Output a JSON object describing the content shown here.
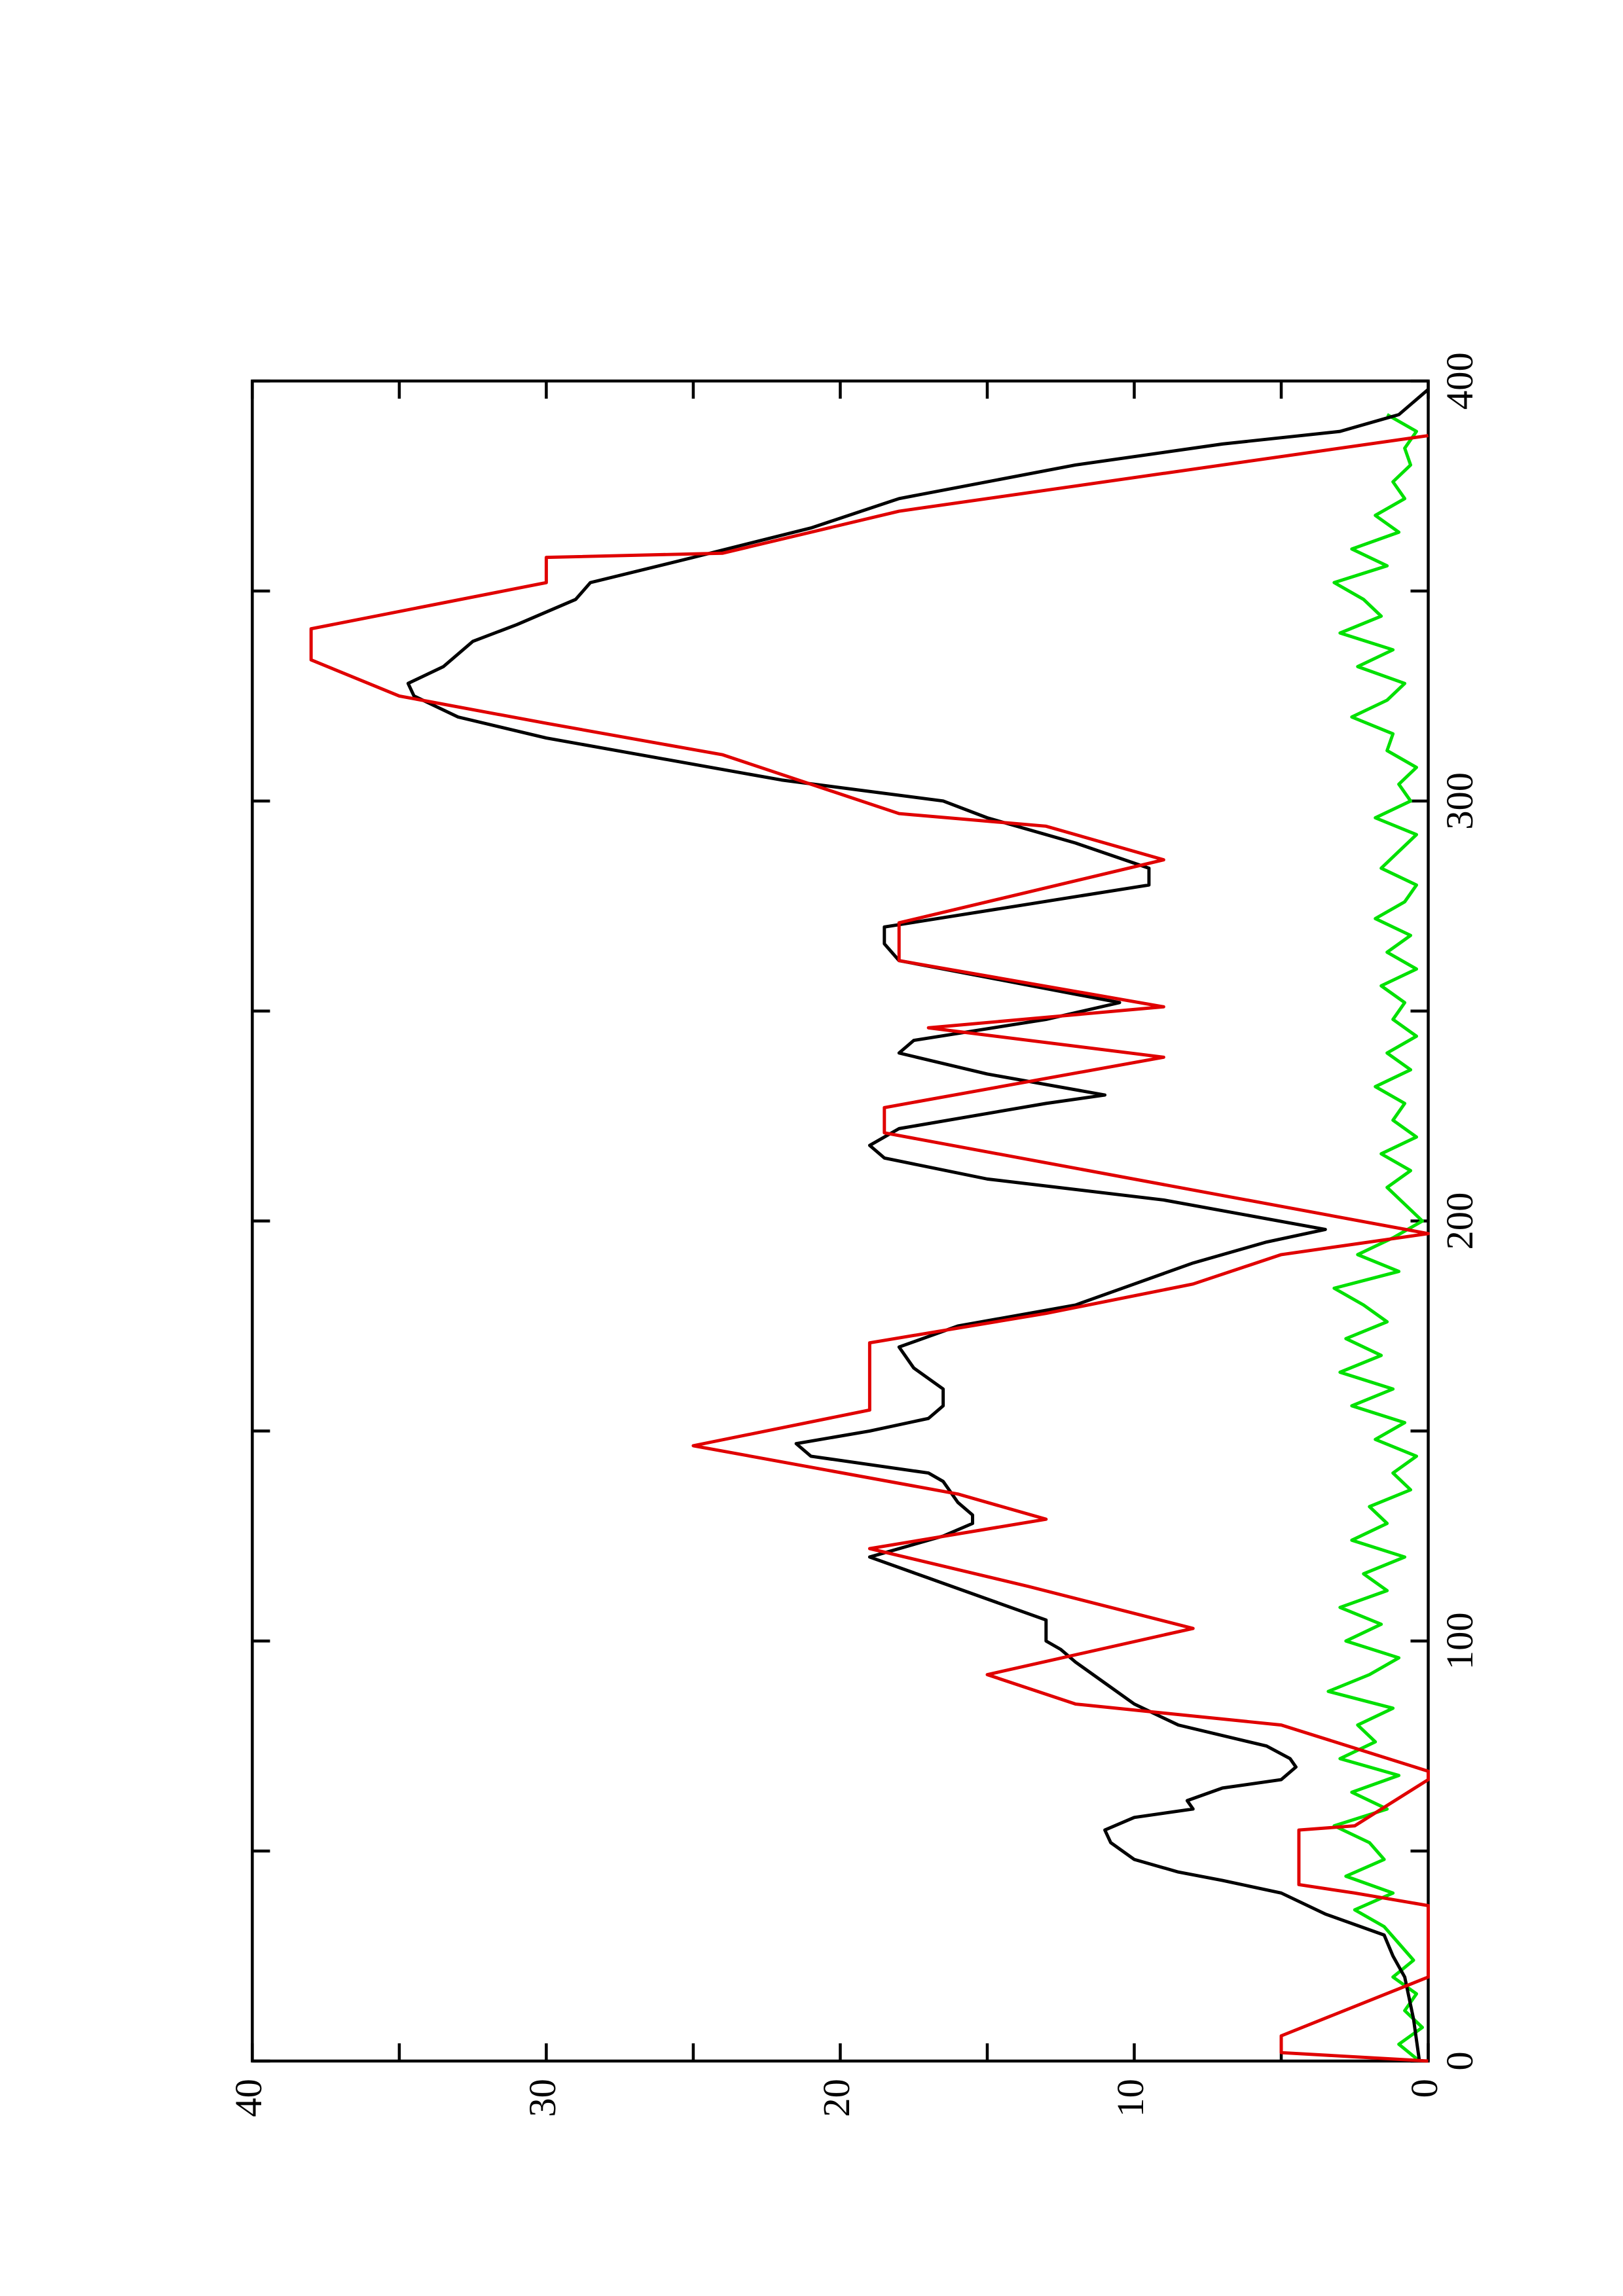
{
  "chart_data": {
    "type": "line",
    "xlim": [
      0,
      400
    ],
    "ylim": [
      0,
      40
    ],
    "xticks": [
      0,
      100,
      200,
      300,
      400
    ],
    "xticks_minor": [
      50,
      150,
      250,
      350
    ],
    "yticks": [
      0,
      10,
      20,
      30,
      40
    ],
    "yticks_minor": [
      5,
      15,
      25,
      35
    ],
    "series": [
      {
        "color": "#00e000",
        "x": [
          0,
          4,
          8,
          12,
          16,
          20,
          24,
          28,
          32,
          36,
          40,
          44,
          48,
          52,
          56,
          60,
          64,
          68,
          72,
          76,
          80,
          84,
          88,
          92,
          96,
          100,
          104,
          108,
          112,
          116,
          120,
          124,
          128,
          132,
          136,
          140,
          144,
          148,
          152,
          156,
          160,
          164,
          168,
          172,
          176,
          180,
          184,
          188,
          192,
          196,
          200,
          204,
          208,
          212,
          216,
          220,
          224,
          228,
          232,
          236,
          240,
          244,
          248,
          252,
          256,
          260,
          264,
          268,
          272,
          276,
          280,
          284,
          288,
          292,
          296,
          300,
          304,
          308,
          312,
          316,
          320,
          324,
          328,
          332,
          336,
          340,
          344,
          348,
          352,
          356,
          360,
          364,
          368,
          372,
          376,
          380,
          384,
          388,
          392
        ],
        "values": [
          0.3,
          1.0,
          0.2,
          0.8,
          0.4,
          1.2,
          0.5,
          1.0,
          1.5,
          2.5,
          1.2,
          2.8,
          1.5,
          2.0,
          3.2,
          1.4,
          2.6,
          1.0,
          3.0,
          1.8,
          2.4,
          1.2,
          3.4,
          2.0,
          1.0,
          2.8,
          1.6,
          3.0,
          1.4,
          2.2,
          0.8,
          2.6,
          1.4,
          2.0,
          0.6,
          1.2,
          0.4,
          1.8,
          0.8,
          2.6,
          1.2,
          3.0,
          1.6,
          2.8,
          1.4,
          2.2,
          3.2,
          1.0,
          2.4,
          1.2,
          0.2,
          0.8,
          1.4,
          0.6,
          1.6,
          0.4,
          1.2,
          0.8,
          1.8,
          0.6,
          1.4,
          0.4,
          1.2,
          0.8,
          1.6,
          0.4,
          1.4,
          0.6,
          1.8,
          0.8,
          0.4,
          1.6,
          1.0,
          0.4,
          1.8,
          0.6,
          1.0,
          0.4,
          1.4,
          1.2,
          2.6,
          1.4,
          0.8,
          2.4,
          1.2,
          3.0,
          1.6,
          2.2,
          3.2,
          1.4,
          2.6,
          1.0,
          1.8,
          0.8,
          1.2,
          0.6,
          0.8,
          0.4,
          1.4
        ]
      },
      {
        "color": "#000000",
        "x": [
          0,
          10,
          20,
          25,
          30,
          35,
          40,
          43,
          45,
          48,
          52,
          55,
          58,
          60,
          62,
          65,
          67,
          70,
          72,
          75,
          80,
          85,
          90,
          95,
          98,
          100,
          105,
          110,
          115,
          120,
          125,
          128,
          130,
          133,
          138,
          140,
          144,
          147,
          150,
          153,
          156,
          160,
          165,
          170,
          175,
          180,
          185,
          190,
          195,
          198,
          205,
          210,
          215,
          218,
          222,
          228,
          230,
          235,
          240,
          243,
          248,
          252,
          258,
          262,
          266,
          270,
          275,
          280,
          284,
          290,
          296,
          300,
          305,
          310,
          315,
          320,
          325,
          328,
          332,
          335,
          338,
          342,
          348,
          352,
          358,
          365,
          372,
          380,
          385,
          388,
          392,
          395,
          398
        ],
        "values": [
          0.3,
          0.5,
          0.8,
          1.2,
          1.5,
          3.5,
          5,
          7,
          8.5,
          10,
          10.8,
          11,
          10,
          8,
          8.2,
          7,
          5,
          4.5,
          4.7,
          5.5,
          8.5,
          10,
          11,
          12,
          12.5,
          13,
          13,
          15,
          17,
          19,
          16.5,
          15.5,
          15.5,
          16,
          16.5,
          17,
          21,
          21.5,
          19,
          17,
          16.5,
          16.5,
          17.5,
          18,
          16,
          12,
          10,
          8,
          5.5,
          3.5,
          9,
          15,
          18.5,
          19,
          18,
          13,
          11,
          15,
          18,
          17.5,
          13,
          10.5,
          15,
          18,
          18.5,
          18.5,
          14,
          9.5,
          9.5,
          12,
          15,
          16.5,
          22,
          26,
          30,
          33,
          34.5,
          34.7,
          33.5,
          33,
          32.5,
          31,
          29,
          28.5,
          25,
          21,
          18,
          12,
          7,
          3,
          1,
          0.5,
          0
        ]
      },
      {
        "color": "#e00000",
        "x": [
          0,
          2,
          6,
          20,
          37,
          40,
          42,
          55,
          56,
          67,
          69,
          80,
          85,
          92,
          103,
          113,
          122,
          129,
          135,
          146.5,
          155,
          171,
          178,
          185,
          192,
          197,
          221,
          227,
          239,
          246,
          251,
          262,
          271,
          286,
          294,
          297,
          311,
          318.5,
          325,
          333.6,
          341,
          352,
          358,
          359,
          369,
          387
        ],
        "values": [
          0,
          5,
          5,
          0,
          0,
          2.5,
          4.4,
          4.4,
          2.5,
          0,
          0,
          5,
          12,
          15,
          8,
          13.6,
          19,
          13,
          16,
          25,
          19,
          19,
          13,
          8,
          5,
          0,
          18.5,
          18.5,
          9,
          17,
          9,
          18,
          18,
          9,
          13,
          18,
          24,
          30,
          35,
          38,
          38,
          30,
          30,
          24,
          18,
          0
        ]
      }
    ]
  }
}
